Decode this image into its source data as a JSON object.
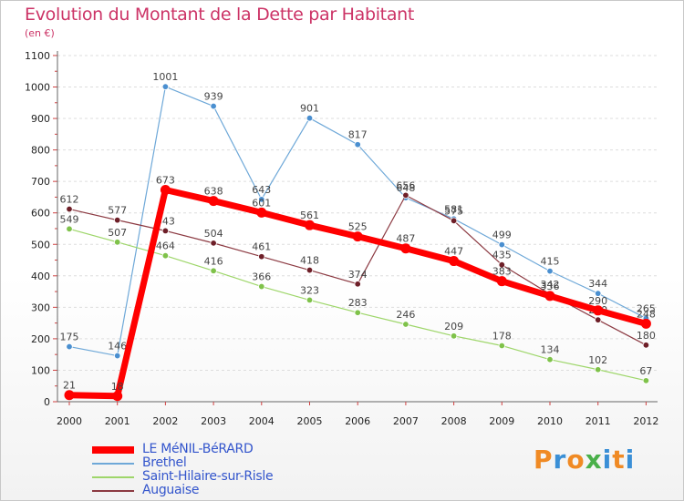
{
  "title": "Evolution du Montant de la Dette par Habitant",
  "subtitle": "(en €)",
  "logo": {
    "text": "Proxiti",
    "colors": [
      "#f08a24",
      "#3a8fd6",
      "#f08a24",
      "#4ab04a",
      "#3a8fd6",
      "#f08a24",
      "#3a8fd6"
    ]
  },
  "chart_data": {
    "type": "line",
    "title": "Evolution du Montant de la Dette par Habitant",
    "ylabel": "(en €)",
    "xlabel": "",
    "categories": [
      "2000",
      "2001",
      "2002",
      "2003",
      "2004",
      "2005",
      "2006",
      "2007",
      "2008",
      "2009",
      "2010",
      "2011",
      "2012"
    ],
    "ylim": [
      0,
      1100
    ],
    "yticks": [
      0,
      100,
      200,
      300,
      400,
      500,
      600,
      700,
      800,
      900,
      1000,
      1100
    ],
    "grid": true,
    "legend_position": "bottom-left",
    "series": [
      {
        "name": "Brethel",
        "color": "#6ea8d8",
        "marker": "#4a8fd0",
        "emphasis": false,
        "values": [
          175,
          146,
          1001,
          939,
          643,
          901,
          817,
          648,
          581,
          499,
          415,
          344,
          265
        ]
      },
      {
        "name": "Saint-Hilaire-sur-Risle",
        "color": "#9ed66a",
        "marker": "#7fc24a",
        "emphasis": false,
        "values": [
          549,
          507,
          464,
          416,
          366,
          323,
          283,
          246,
          209,
          178,
          134,
          102,
          67
        ]
      },
      {
        "name": "Auguaise",
        "color": "#8c3a42",
        "marker": "#6e1f28",
        "emphasis": false,
        "values": [
          612,
          577,
          543,
          504,
          461,
          418,
          374,
          656,
          575,
          435,
          342,
          260,
          180
        ]
      },
      {
        "name": "LE MéNIL-BéRARD",
        "color": "#ff0000",
        "marker": "#ff0000",
        "emphasis": true,
        "values": [
          21,
          18,
          673,
          638,
          601,
          561,
          525,
          487,
          447,
          383,
          336,
          290,
          248
        ]
      }
    ]
  },
  "legend": [
    {
      "name": "LE MéNIL-BéRARD",
      "color": "#ff0000",
      "thick": true
    },
    {
      "name": "Brethel",
      "color": "#6ea8d8",
      "thick": false
    },
    {
      "name": "Saint-Hilaire-sur-Risle",
      "color": "#9ed66a",
      "thick": false
    },
    {
      "name": "Auguaise",
      "color": "#8c3a42",
      "thick": false
    }
  ]
}
